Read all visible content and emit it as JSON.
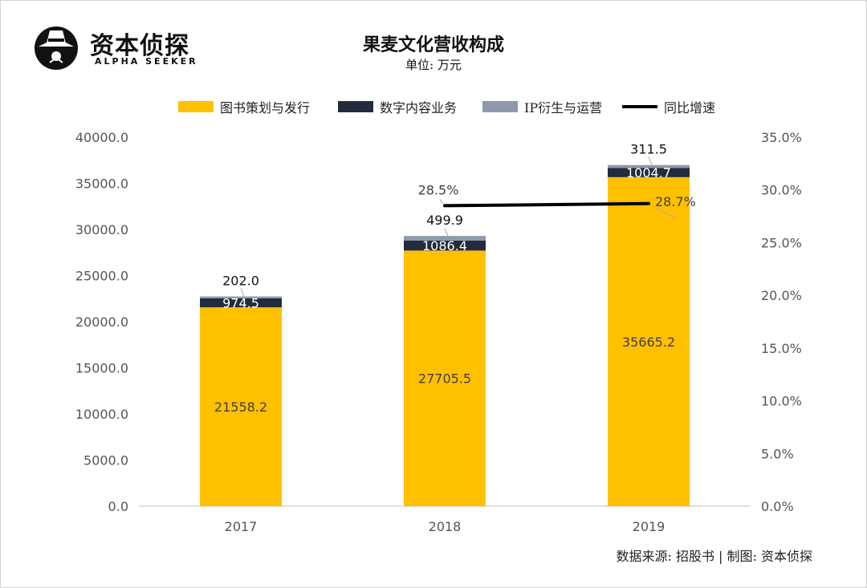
{
  "brand": {
    "name": "资本侦探",
    "tagline": "ALPHA SEEKER"
  },
  "header": {
    "title": "果麦文化营收构成",
    "unit": "单位: 万元"
  },
  "footer": {
    "source": "数据来源: 招股书 | 制图: 资本侦探"
  },
  "colors": {
    "books": "#FFC000",
    "digital": "#232C3C",
    "ip": "#8E99AB",
    "line": "#000000",
    "axis": "#bfbfbf"
  },
  "chart_data": {
    "type": "bar",
    "stacked": true,
    "title": "果麦文化营收构成",
    "subtitle": "单位: 万元",
    "categories": [
      "2017",
      "2018",
      "2019"
    ],
    "series": [
      {
        "name": "图书策划与发行",
        "values": [
          21558.2,
          27705.5,
          35665.2
        ],
        "color": "#FFC000"
      },
      {
        "name": "数字内容业务",
        "values": [
          974.5,
          1086.4,
          1004.7
        ],
        "color": "#232C3C"
      },
      {
        "name": "IP衍生与运营",
        "values": [
          202.0,
          499.9,
          311.5
        ],
        "color": "#8E99AB"
      }
    ],
    "line_series": {
      "name": "同比增速",
      "axis": "right",
      "values": [
        null,
        28.5,
        28.7
      ],
      "labels": [
        "",
        "28.5%",
        "28.7%"
      ],
      "color": "#000000"
    },
    "y_axis_left": {
      "ylim": [
        0,
        40000
      ],
      "ticks": [
        "0.0",
        "5000.0",
        "10000.0",
        "15000.0",
        "20000.0",
        "25000.0",
        "30000.0",
        "35000.0",
        "40000.0"
      ]
    },
    "y_axis_right": {
      "ylim": [
        0,
        35
      ],
      "ticks": [
        "0.0%",
        "5.0%",
        "10.0%",
        "15.0%",
        "20.0%",
        "25.0%",
        "30.0%",
        "35.0%"
      ]
    },
    "data_labels": {
      "books": [
        "21558.2",
        "27705.5",
        "35665.2"
      ],
      "digital": [
        "974.5",
        "1086.4",
        "1004.7"
      ],
      "ip": [
        "202.0",
        "499.9",
        "311.5"
      ]
    },
    "legend_position": "top",
    "grid": false
  }
}
